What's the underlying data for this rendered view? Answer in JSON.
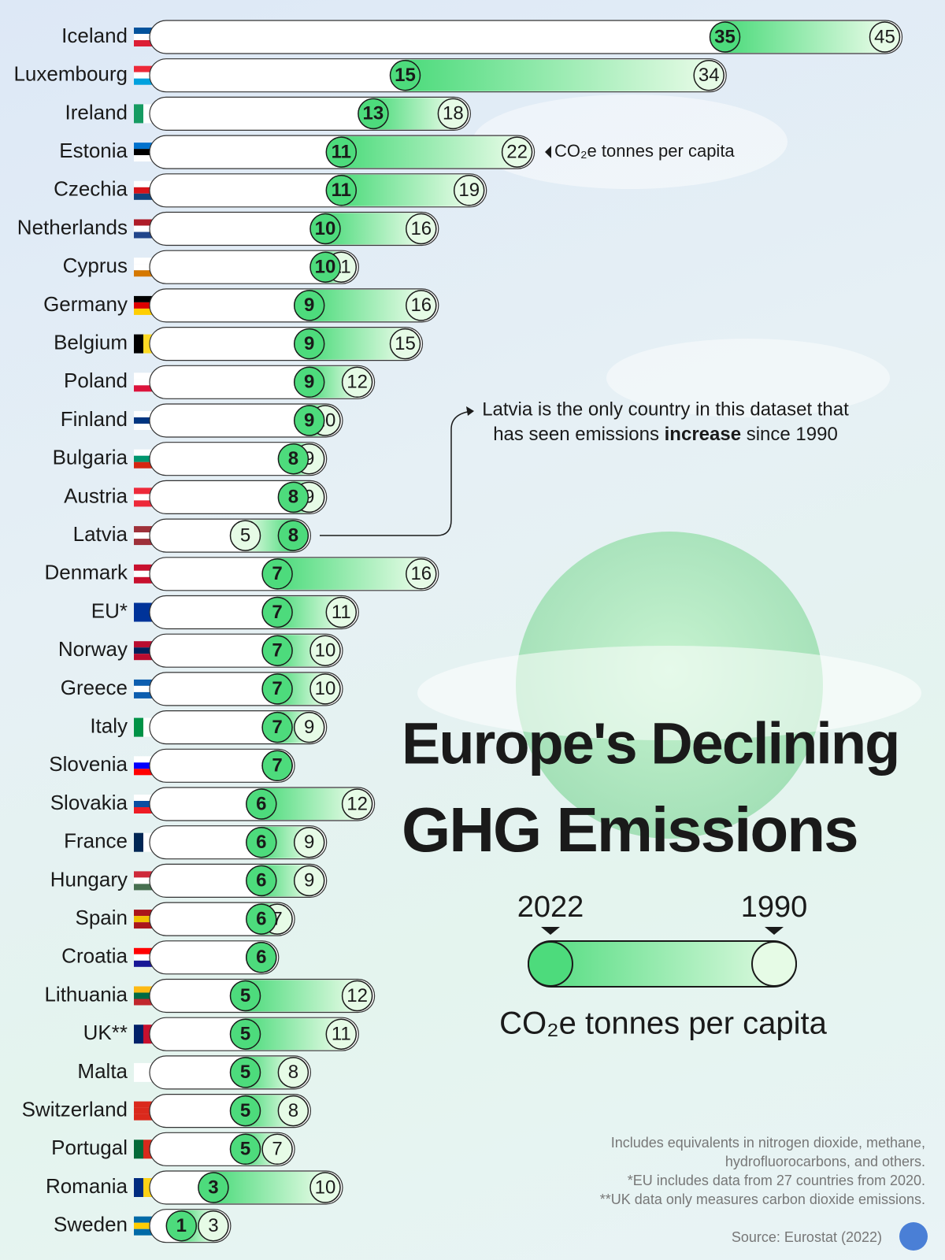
{
  "chart_data": {
    "type": "dumbbell",
    "title": [
      "Europe's Declining",
      "GHG Emissions"
    ],
    "unit": "CO₂e tonnes per capita",
    "categories": [
      "Iceland",
      "Luxembourg",
      "Ireland",
      "Estonia",
      "Czechia",
      "Netherlands",
      "Cyprus",
      "Germany",
      "Belgium",
      "Poland",
      "Finland",
      "Bulgaria",
      "Austria",
      "Latvia",
      "Denmark",
      "EU*",
      "Norway",
      "Greece",
      "Italy",
      "Slovenia",
      "Slovakia",
      "France",
      "Hungary",
      "Spain",
      "Croatia",
      "Lithuania",
      "UK**",
      "Malta",
      "Switzerland",
      "Portugal",
      "Romania",
      "Sweden"
    ],
    "series": [
      {
        "name": "2022",
        "color": "#4ddb7c",
        "values": [
          35,
          15,
          13,
          11,
          11,
          10,
          10,
          9,
          9,
          9,
          9,
          8,
          8,
          8,
          7,
          7,
          7,
          7,
          7,
          7,
          6,
          6,
          6,
          6,
          6,
          5,
          5,
          5,
          5,
          5,
          3,
          1
        ]
      },
      {
        "name": "1990",
        "color": "#e6fbe6",
        "values": [
          45,
          34,
          18,
          22,
          19,
          16,
          11,
          16,
          15,
          12,
          10,
          9,
          9,
          5,
          16,
          11,
          10,
          10,
          9,
          7,
          12,
          9,
          9,
          7,
          6,
          12,
          11,
          8,
          8,
          7,
          10,
          3
        ]
      }
    ],
    "note": [
      "Latvia is the only country in this dataset that",
      "has seen emissions ",
      "increase",
      " since 1990"
    ],
    "footnotes": [
      "Includes equivalents in nitrogen dioxide, methane,",
      "hydrofluorocarbons, and others.",
      "*EU includes data from 27 countries from 2020.",
      "**UK data only measures carbon dioxide emissions."
    ],
    "source": "Source: Eurostat (2022)"
  }
}
